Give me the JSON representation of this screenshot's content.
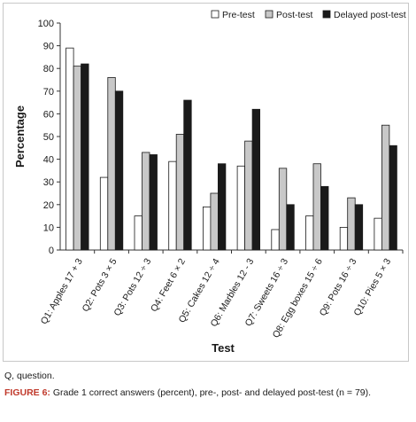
{
  "chart_data": {
    "type": "bar",
    "title": "",
    "xlabel": "Test",
    "ylabel": "Percentage",
    "ylim": [
      0,
      100
    ],
    "yticks": [
      0,
      10,
      20,
      30,
      40,
      50,
      60,
      70,
      80,
      90,
      100
    ],
    "legend_position": "top-right",
    "categories": [
      "Q1: Apples 17 + 3",
      "Q2: Pots 3 × 5",
      "Q3: Pots 12 ÷ 3",
      "Q4: Feet 6 × 2",
      "Q5: Cakes 12 ÷ 4",
      "Q6: Marbles 12 - 3",
      "Q7: Sweets 16 ÷ 3",
      "Q8: Egg boxes 15 ÷ 6",
      "Q9: Pots 16 ÷ 3",
      "Q10: Pies 5 × 3"
    ],
    "series": [
      {
        "name": "Pre-test",
        "color": "#ffffff",
        "values": [
          89,
          32,
          15,
          39,
          19,
          37,
          9,
          15,
          10,
          14
        ]
      },
      {
        "name": "Post-test",
        "color": "#c8c8c8",
        "values": [
          81,
          76,
          43,
          51,
          25,
          48,
          36,
          38,
          23,
          55
        ]
      },
      {
        "name": "Delayed post-test",
        "color": "#1a1a1a",
        "values": [
          82,
          70,
          42,
          66,
          38,
          62,
          20,
          28,
          20,
          46
        ]
      }
    ]
  },
  "footnote": "Q, question.",
  "caption": {
    "label": "FIGURE 6:",
    "text": " Grade 1 correct answers (percent), pre-, post- and delayed post-test (n = 79)."
  }
}
